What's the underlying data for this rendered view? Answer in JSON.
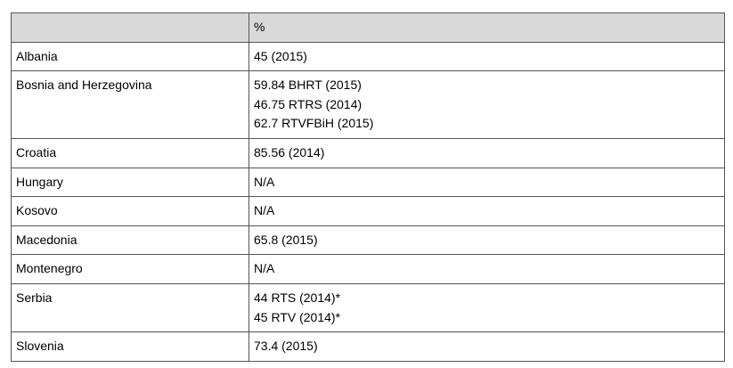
{
  "table": {
    "header": "%",
    "rows": [
      {
        "country": "Albania",
        "values": [
          "45 (2015)"
        ]
      },
      {
        "country": "Bosnia and Herzegovina",
        "values": [
          "59.84 BHRT (2015)",
          "46.75 RTRS (2014)",
          "62.7 RTVFBiH (2015)"
        ]
      },
      {
        "country": "Croatia",
        "values": [
          "85.56 (2014)"
        ]
      },
      {
        "country": "Hungary",
        "values": [
          "N/A"
        ]
      },
      {
        "country": "Kosovo",
        "values": [
          "N/A"
        ]
      },
      {
        "country": "Macedonia",
        "values": [
          "65.8 (2015)"
        ]
      },
      {
        "country": "Montenegro",
        "values": [
          "N/A"
        ]
      },
      {
        "country": "Serbia",
        "values": [
          "44 RTS (2014)*",
          "45 RTV (2014)*"
        ]
      },
      {
        "country": "Slovenia",
        "values": [
          "73.4 (2015)"
        ]
      }
    ]
  }
}
